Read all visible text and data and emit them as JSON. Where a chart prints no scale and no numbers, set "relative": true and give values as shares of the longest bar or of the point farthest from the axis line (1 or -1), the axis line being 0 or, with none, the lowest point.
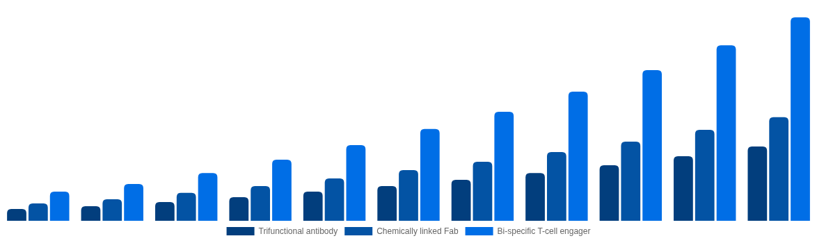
{
  "chart_data": {
    "type": "bar",
    "relative": true,
    "categories": [
      null,
      null,
      null,
      null,
      null,
      null,
      null,
      null,
      null,
      null,
      null
    ],
    "legend": "bottom",
    "series": [
      {
        "name": "Trifunctional antibody",
        "color": "#023e7d",
        "values": [
          0.058,
          0.072,
          0.092,
          0.116,
          0.143,
          0.171,
          0.201,
          0.235,
          0.273,
          0.317,
          0.365
        ]
      },
      {
        "name": "Chemically linked Fab",
        "color": "#0353a4",
        "values": [
          0.085,
          0.106,
          0.137,
          0.171,
          0.208,
          0.249,
          0.29,
          0.338,
          0.389,
          0.447,
          0.509
        ]
      },
      {
        "name": "Bi-specific T-cell engager",
        "color": "#006ee6",
        "values": [
          0.143,
          0.181,
          0.235,
          0.3,
          0.372,
          0.451,
          0.536,
          0.635,
          0.741,
          0.863,
          1
        ]
      }
    ]
  }
}
